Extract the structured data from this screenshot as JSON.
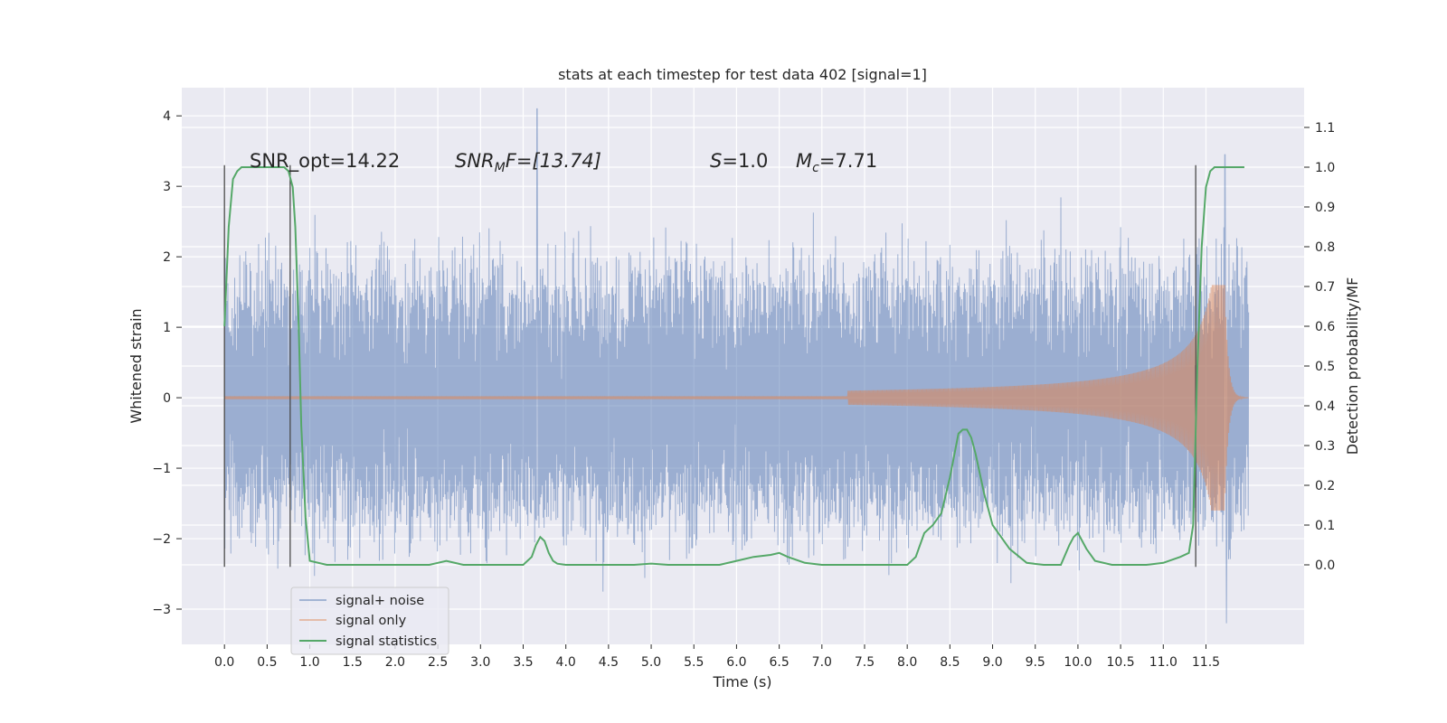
{
  "chart_data": {
    "type": "line",
    "title": "stats at each timestep for test data 402 [signal=1]",
    "xlabel": "Time (s)",
    "ylabel_left": "Whitened strain",
    "ylabel_right": "Detection probability/MF",
    "xlim": [
      -0.5,
      12.65
    ],
    "ylim_left": [
      -3.5,
      4.4
    ],
    "ylim_right": [
      -0.2,
      1.2
    ],
    "x_ticks": [
      0.0,
      0.5,
      1.0,
      1.5,
      2.0,
      2.5,
      3.0,
      3.5,
      4.0,
      4.5,
      5.0,
      5.5,
      6.0,
      6.5,
      7.0,
      7.5,
      8.0,
      8.5,
      9.0,
      9.5,
      10.0,
      10.5,
      11.0,
      11.5
    ],
    "x_tick_labels": [
      "0.0",
      "0.5",
      "1.0",
      "1.5",
      "2.0",
      "2.5",
      "3.0",
      "3.5",
      "4.0",
      "4.5",
      "5.0",
      "5.5",
      "6.0",
      "6.5",
      "7.0",
      "7.5",
      "8.0",
      "8.5",
      "9.0",
      "9.5",
      "10.0",
      "10.5",
      "11.0",
      "11.5"
    ],
    "y_left_ticks": [
      -3,
      -2,
      -1,
      0,
      1,
      2,
      3,
      4
    ],
    "y_left_tick_labels": [
      "−3",
      "−2",
      "−1",
      "0",
      "1",
      "2",
      "3",
      "4"
    ],
    "y_right_ticks": [
      0.0,
      0.1,
      0.2,
      0.3,
      0.4,
      0.5,
      0.6,
      0.7,
      0.8,
      0.9,
      1.0,
      1.1
    ],
    "y_right_tick_labels": [
      "0.0",
      "0.1",
      "0.2",
      "0.3",
      "0.4",
      "0.5",
      "0.6",
      "0.7",
      "0.8",
      "0.9",
      "1.0",
      "1.1"
    ],
    "grid": true,
    "legend_position": "bottom-left",
    "annotations": {
      "snr_opt": "SNR_opt=14.22",
      "snr_mf_main": "SNR",
      "snr_mf_sub": "M",
      "snr_mf_rest": "F=[13.74]",
      "s_sym": "S",
      "s_val": "=1.0",
      "mc_sym": "M",
      "mc_sub": "c",
      "mc_val": "=7.71"
    },
    "vlines": [
      {
        "x": 0.0,
        "y_range": [
          -2.4,
          3.3
        ]
      },
      {
        "x": 0.77,
        "y_range": [
          -2.4,
          3.3
        ]
      },
      {
        "x": 11.38,
        "y_range": [
          -2.4,
          3.3
        ]
      }
    ],
    "series": [
      {
        "name": "signal+ noise",
        "color": "#4c72b0",
        "opacity": 0.5,
        "duration": 12.0,
        "envelope": 1.45,
        "noise_scale": 0.48,
        "note_peaks": [
          [
            3.66,
            4.1
          ],
          [
            11.72,
            3.45
          ],
          [
            11.74,
            -3.2
          ]
        ]
      },
      {
        "name": "signal only",
        "color": "#dd8452",
        "opacity": 0.55,
        "onset": 7.3,
        "merger": 11.72,
        "peak_amplitude": 1.6
      },
      {
        "name": "signal statistics",
        "color": "#55a868",
        "axis": "right",
        "x": [
          0.0,
          0.05,
          0.1,
          0.15,
          0.2,
          0.3,
          0.4,
          0.5,
          0.6,
          0.7,
          0.75,
          0.8,
          0.83,
          0.87,
          0.9,
          0.95,
          1.0,
          1.2,
          1.5,
          2.0,
          2.4,
          2.5,
          2.6,
          2.8,
          3.0,
          3.3,
          3.5,
          3.6,
          3.65,
          3.7,
          3.75,
          3.8,
          3.85,
          3.9,
          4.0,
          4.2,
          4.5,
          4.8,
          5.0,
          5.2,
          5.5,
          5.8,
          6.0,
          6.2,
          6.4,
          6.5,
          6.6,
          6.8,
          7.0,
          7.2,
          7.5,
          7.8,
          8.0,
          8.1,
          8.2,
          8.3,
          8.4,
          8.5,
          8.6,
          8.65,
          8.7,
          8.75,
          8.8,
          8.9,
          9.0,
          9.2,
          9.4,
          9.6,
          9.8,
          9.9,
          9.95,
          10.0,
          10.1,
          10.2,
          10.4,
          10.6,
          10.8,
          11.0,
          11.2,
          11.3,
          11.35,
          11.4,
          11.45,
          11.5,
          11.55,
          11.6,
          11.7,
          11.8,
          11.95
        ],
        "y": [
          0.6,
          0.85,
          0.97,
          0.99,
          1.0,
          1.0,
          1.0,
          1.0,
          1.0,
          1.0,
          0.99,
          0.95,
          0.85,
          0.6,
          0.35,
          0.12,
          0.01,
          0.0,
          0.0,
          0.0,
          0.0,
          0.005,
          0.01,
          0.0,
          0.0,
          0.0,
          0.0,
          0.02,
          0.05,
          0.07,
          0.06,
          0.03,
          0.01,
          0.003,
          0.0,
          0.0,
          0.0,
          0.0,
          0.003,
          0.0,
          0.0,
          0.0,
          0.01,
          0.02,
          0.025,
          0.03,
          0.02,
          0.005,
          0.0,
          0.0,
          0.0,
          0.0,
          0.0,
          0.02,
          0.08,
          0.1,
          0.13,
          0.22,
          0.33,
          0.34,
          0.34,
          0.32,
          0.28,
          0.18,
          0.1,
          0.04,
          0.005,
          0.0,
          0.0,
          0.05,
          0.07,
          0.08,
          0.04,
          0.01,
          0.0,
          0.0,
          0.0,
          0.005,
          0.02,
          0.03,
          0.1,
          0.5,
          0.8,
          0.95,
          0.99,
          1.0,
          1.0,
          1.0,
          1.0
        ]
      }
    ]
  }
}
